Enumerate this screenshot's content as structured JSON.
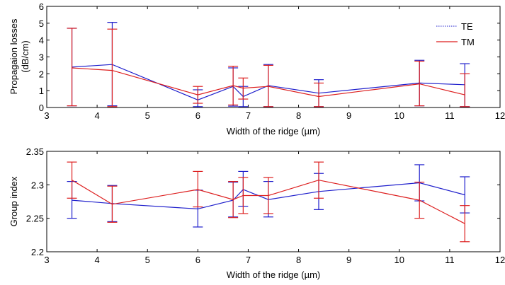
{
  "chart_data": [
    {
      "type": "line",
      "xlabel": "Width of the ridge (µm)",
      "ylabel": "Propagaion losses (dB/cm)",
      "ylabel_lines": [
        "Propagaion losses",
        "(dB/cm)"
      ],
      "xlim": [
        3,
        12
      ],
      "ylim": [
        0,
        6
      ],
      "xticks": [
        "3",
        "4",
        "5",
        "6",
        "7",
        "8",
        "9",
        "10",
        "11",
        "12"
      ],
      "yticks": [
        "0",
        "1",
        "2",
        "3",
        "4",
        "5",
        "6"
      ],
      "legend_position": "top-right",
      "series": [
        {
          "name": "TE",
          "color": "#1f1fcc",
          "line_style": "dotted-legend",
          "x": [
            3.5,
            4.3,
            6.0,
            6.7,
            6.9,
            7.4,
            8.4,
            10.4,
            11.3
          ],
          "y": [
            2.4,
            2.55,
            0.45,
            1.25,
            0.65,
            1.3,
            0.85,
            1.45,
            1.35
          ],
          "err_low": [
            0.1,
            0.1,
            0.05,
            0.08,
            0.05,
            0.05,
            0.05,
            0.1,
            0.05
          ],
          "err_high": [
            4.7,
            5.05,
            1.05,
            2.35,
            1.25,
            2.55,
            1.65,
            2.8,
            2.6
          ]
        },
        {
          "name": "TM",
          "color": "#dd1f1f",
          "line_style": "solid",
          "x": [
            3.5,
            4.3,
            6.0,
            6.7,
            6.9,
            7.4,
            8.4,
            10.4,
            11.3
          ],
          "y": [
            2.35,
            2.2,
            0.75,
            1.3,
            1.15,
            1.25,
            0.65,
            1.4,
            0.75
          ],
          "err_low": [
            0.1,
            0.05,
            0.25,
            0.15,
            0.5,
            0.05,
            0.05,
            0.1,
            0.05
          ],
          "err_high": [
            4.7,
            4.65,
            1.25,
            2.45,
            1.75,
            2.5,
            1.45,
            2.75,
            2.0
          ]
        }
      ]
    },
    {
      "type": "line",
      "xlabel": "Width of the ridge (µm)",
      "ylabel": "Group index",
      "ylabel_lines": [
        "Group index"
      ],
      "xlim": [
        3,
        12
      ],
      "ylim": [
        2.2,
        2.35
      ],
      "xticks": [
        "3",
        "4",
        "5",
        "6",
        "7",
        "8",
        "9",
        "10",
        "11",
        "12"
      ],
      "yticks": [
        "2.2",
        "2.25",
        "2.3",
        "2.35"
      ],
      "series": [
        {
          "name": "TE",
          "color": "#1f1fcc",
          "x": [
            3.5,
            4.3,
            6.0,
            6.7,
            6.9,
            7.4,
            8.4,
            10.4,
            11.3
          ],
          "y": [
            2.277,
            2.272,
            2.264,
            2.277,
            2.293,
            2.278,
            2.29,
            2.303,
            2.285
          ],
          "err_low": [
            2.25,
            2.245,
            2.237,
            2.252,
            2.268,
            2.252,
            2.263,
            2.276,
            2.258
          ],
          "err_high": [
            2.305,
            2.299,
            2.292,
            2.304,
            2.32,
            2.305,
            2.317,
            2.33,
            2.312
          ]
        },
        {
          "name": "TM",
          "color": "#dd1f1f",
          "x": [
            3.5,
            4.3,
            6.0,
            6.7,
            6.9,
            7.4,
            8.4,
            10.4,
            11.3
          ],
          "y": [
            2.307,
            2.271,
            2.293,
            2.278,
            2.284,
            2.284,
            2.307,
            2.277,
            2.242
          ],
          "err_low": [
            2.28,
            2.244,
            2.267,
            2.251,
            2.257,
            2.257,
            2.28,
            2.25,
            2.215
          ],
          "err_high": [
            2.334,
            2.298,
            2.32,
            2.305,
            2.311,
            2.311,
            2.334,
            2.304,
            2.269
          ]
        }
      ]
    }
  ]
}
